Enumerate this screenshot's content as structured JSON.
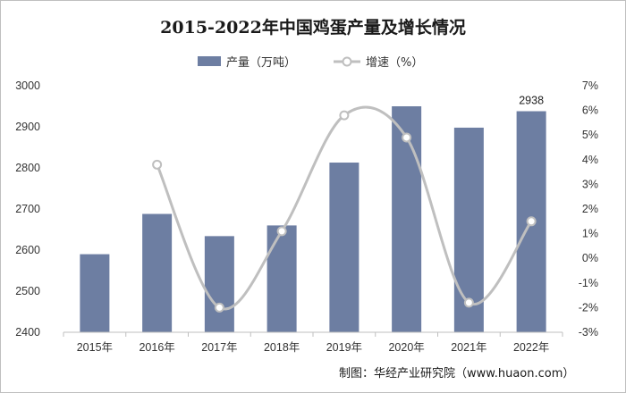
{
  "chart_data": {
    "type": "bar+line",
    "title": "2015-2022年中国鸡蛋产量及增长情况",
    "categories": [
      "2015年",
      "2016年",
      "2017年",
      "2018年",
      "2019年",
      "2020年",
      "2021年",
      "2022年"
    ],
    "series": [
      {
        "name": "产量（万吨）",
        "type": "bar",
        "axis": "left",
        "color": "#6d7ea2",
        "values": [
          2590,
          2688,
          2634,
          2660,
          2813,
          2950,
          2898,
          2938
        ]
      },
      {
        "name": "增速（%）",
        "type": "line",
        "axis": "right",
        "smooth": true,
        "color": "#bfbfbf",
        "values": [
          null,
          3.8,
          -2.0,
          1.1,
          5.8,
          4.9,
          -1.8,
          1.5
        ]
      }
    ],
    "left_axis": {
      "min": 2400,
      "max": 3000,
      "step": 100,
      "ticks": [
        "2400",
        "2500",
        "2600",
        "2700",
        "2800",
        "2900",
        "3000"
      ]
    },
    "right_axis": {
      "min": -3,
      "max": 7,
      "step": 1,
      "ticks": [
        "-3%",
        "-2%",
        "-1%",
        "0%",
        "1%",
        "2%",
        "3%",
        "4%",
        "5%",
        "6%",
        "7%"
      ]
    },
    "data_labels": [
      {
        "category": "2022年",
        "text": "2938"
      }
    ],
    "legend_position": "top-center",
    "grid": false,
    "source": "制图：华经产业研究院（www.huaon.com）"
  }
}
